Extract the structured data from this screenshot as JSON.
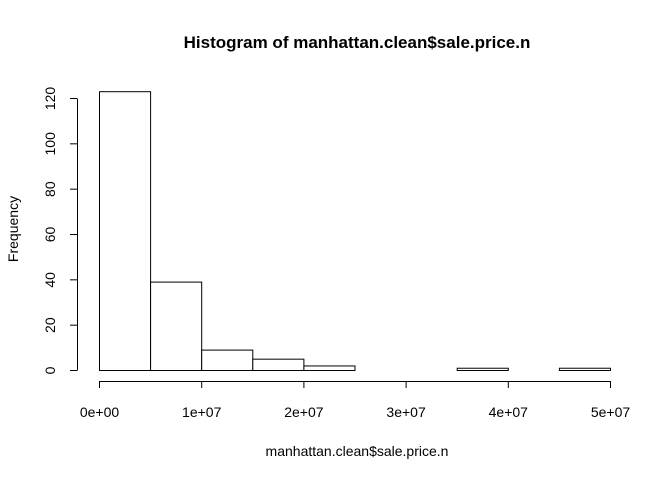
{
  "chart_data": {
    "type": "bar",
    "title": "Histogram of manhattan.clean$sale.price.n",
    "xlabel": "manhattan.clean$sale.price.n",
    "ylabel": "Frequency",
    "xlim": [
      0,
      50000000
    ],
    "ylim": [
      0,
      120
    ],
    "bins": [
      {
        "x0": 0,
        "x1": 5000000,
        "count": 123
      },
      {
        "x0": 5000000,
        "x1": 10000000,
        "count": 39
      },
      {
        "x0": 10000000,
        "x1": 15000000,
        "count": 9
      },
      {
        "x0": 15000000,
        "x1": 20000000,
        "count": 5
      },
      {
        "x0": 20000000,
        "x1": 25000000,
        "count": 2
      },
      {
        "x0": 25000000,
        "x1": 30000000,
        "count": 0
      },
      {
        "x0": 30000000,
        "x1": 35000000,
        "count": 0
      },
      {
        "x0": 35000000,
        "x1": 40000000,
        "count": 1
      },
      {
        "x0": 40000000,
        "x1": 45000000,
        "count": 0
      },
      {
        "x0": 45000000,
        "x1": 50000000,
        "count": 1
      }
    ],
    "x_ticks": [
      {
        "value": 0,
        "label": "0e+00"
      },
      {
        "value": 10000000,
        "label": "1e+07"
      },
      {
        "value": 20000000,
        "label": "2e+07"
      },
      {
        "value": 30000000,
        "label": "3e+07"
      },
      {
        "value": 40000000,
        "label": "4e+07"
      },
      {
        "value": 50000000,
        "label": "5e+07"
      }
    ],
    "y_ticks": [
      {
        "value": 0,
        "label": "0"
      },
      {
        "value": 20,
        "label": "20"
      },
      {
        "value": 40,
        "label": "40"
      },
      {
        "value": 60,
        "label": "60"
      },
      {
        "value": 80,
        "label": "80"
      },
      {
        "value": 100,
        "label": "100"
      },
      {
        "value": 120,
        "label": "120"
      }
    ],
    "bar_fill": "#ffffff",
    "bar_stroke": "#000000",
    "grid": false,
    "legend": "none"
  }
}
